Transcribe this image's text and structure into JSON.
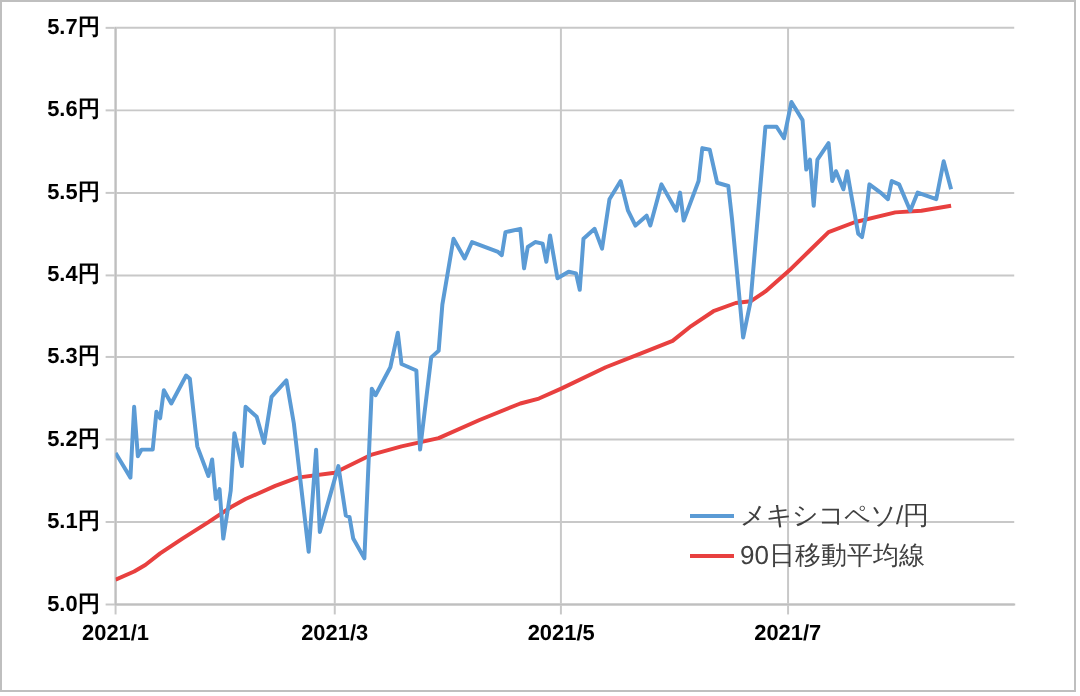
{
  "chart_data": {
    "type": "line",
    "xlim": [
      "2021-01-01",
      "2021-08-31"
    ],
    "xticks": [
      {
        "value": "2021-01",
        "label": "2021/1"
      },
      {
        "value": "2021-03",
        "label": "2021/3"
      },
      {
        "value": "2021-05",
        "label": "2021/5"
      },
      {
        "value": "2021-07",
        "label": "2021/7"
      }
    ],
    "ylim": [
      5.0,
      5.7
    ],
    "yticks": [
      {
        "value": 5.0,
        "label": "5.0円"
      },
      {
        "value": 5.1,
        "label": "5.1円"
      },
      {
        "value": 5.2,
        "label": "5.2円"
      },
      {
        "value": 5.3,
        "label": "5.3円"
      },
      {
        "value": 5.4,
        "label": "5.4円"
      },
      {
        "value": 5.5,
        "label": "5.5円"
      },
      {
        "value": 5.6,
        "label": "5.6円"
      },
      {
        "value": 5.7,
        "label": "5.7円"
      }
    ],
    "grid": true,
    "legend": "bottom right",
    "marker": "none",
    "line_style": "solid",
    "series": [
      {
        "name": "メキシコペソ/円",
        "color": "#5b9bd5",
        "x": [
          "2021-01-01",
          "2021-01-05",
          "2021-01-06",
          "2021-01-07",
          "2021-01-08",
          "2021-01-11",
          "2021-01-12",
          "2021-01-13",
          "2021-01-14",
          "2021-01-16",
          "2021-01-20",
          "2021-01-21",
          "2021-01-23",
          "2021-01-26",
          "2021-01-27",
          "2021-01-28",
          "2021-01-29",
          "2021-01-30",
          "2021-02-01",
          "2021-02-02",
          "2021-02-04",
          "2021-02-05",
          "2021-02-08",
          "2021-02-10",
          "2021-02-12",
          "2021-02-16",
          "2021-02-18",
          "2021-02-22",
          "2021-02-24",
          "2021-02-25",
          "2021-03-02",
          "2021-03-04",
          "2021-03-05",
          "2021-03-06",
          "2021-03-09",
          "2021-03-11",
          "2021-03-12",
          "2021-03-16",
          "2021-03-18",
          "2021-03-19",
          "2021-03-23",
          "2021-03-24",
          "2021-03-27",
          "2021-03-29",
          "2021-03-30",
          "2021-04-02",
          "2021-04-05",
          "2021-04-07",
          "2021-04-14",
          "2021-04-15",
          "2021-04-16",
          "2021-04-20",
          "2021-04-21",
          "2021-04-22",
          "2021-04-24",
          "2021-04-26",
          "2021-04-27",
          "2021-04-28",
          "2021-04-30",
          "2021-05-03",
          "2021-05-05",
          "2021-05-06",
          "2021-05-07",
          "2021-05-10",
          "2021-05-12",
          "2021-05-14",
          "2021-05-17",
          "2021-05-19",
          "2021-05-21",
          "2021-05-24",
          "2021-05-25",
          "2021-05-28",
          "2021-06-01",
          "2021-06-02",
          "2021-06-03",
          "2021-06-07",
          "2021-06-08",
          "2021-06-10",
          "2021-06-12",
          "2021-06-15",
          "2021-06-16",
          "2021-06-19",
          "2021-06-21",
          "2021-06-25",
          "2021-06-28",
          "2021-06-30",
          "2021-07-02",
          "2021-07-05",
          "2021-07-06",
          "2021-07-07",
          "2021-07-08",
          "2021-07-09",
          "2021-07-12",
          "2021-07-13",
          "2021-07-14",
          "2021-07-16",
          "2021-07-17",
          "2021-07-18",
          "2021-07-20",
          "2021-07-21",
          "2021-07-22",
          "2021-07-23",
          "2021-07-26",
          "2021-07-28",
          "2021-07-29",
          "2021-07-31",
          "2021-08-03",
          "2021-08-05",
          "2021-08-10",
          "2021-08-12",
          "2021-08-14"
        ],
        "values": [
          5.184,
          5.154,
          5.24,
          5.18,
          5.188,
          5.188,
          5.234,
          5.226,
          5.26,
          5.244,
          5.278,
          5.274,
          5.192,
          5.156,
          5.176,
          5.128,
          5.14,
          5.08,
          5.138,
          5.208,
          5.168,
          5.24,
          5.228,
          5.196,
          5.252,
          5.272,
          5.22,
          5.064,
          5.188,
          5.088,
          5.168,
          5.108,
          5.106,
          5.08,
          5.056,
          5.262,
          5.254,
          5.288,
          5.33,
          5.292,
          5.284,
          5.188,
          5.3,
          5.308,
          5.364,
          5.444,
          5.42,
          5.44,
          5.428,
          5.424,
          5.452,
          5.456,
          5.408,
          5.434,
          5.44,
          5.438,
          5.416,
          5.448,
          5.396,
          5.404,
          5.402,
          5.382,
          5.444,
          5.456,
          5.432,
          5.492,
          5.514,
          5.478,
          5.46,
          5.472,
          5.46,
          5.51,
          5.478,
          5.5,
          5.466,
          5.514,
          5.554,
          5.552,
          5.512,
          5.508,
          5.468,
          5.324,
          5.368,
          5.58,
          5.58,
          5.566,
          5.61,
          5.588,
          5.528,
          5.54,
          5.484,
          5.54,
          5.56,
          5.514,
          5.526,
          5.504,
          5.526,
          5.5,
          5.45,
          5.446,
          5.47,
          5.51,
          5.5,
          5.492,
          5.514,
          5.51,
          5.478,
          5.5,
          5.492,
          5.538,
          5.504
        ]
      },
      {
        "name": "90日移動平均線",
        "color": "#e8403f",
        "x": [
          "2021-01-01",
          "2021-01-06",
          "2021-01-09",
          "2021-01-13",
          "2021-01-19",
          "2021-01-26",
          "2021-02-01",
          "2021-02-05",
          "2021-02-13",
          "2021-02-19",
          "2021-03-01",
          "2021-03-11",
          "2021-03-19",
          "2021-03-29",
          "2021-04-09",
          "2021-04-20",
          "2021-04-25",
          "2021-05-01",
          "2021-05-13",
          "2021-05-22",
          "2021-05-31",
          "2021-06-05",
          "2021-06-11",
          "2021-06-17",
          "2021-06-21",
          "2021-06-25",
          "2021-07-02",
          "2021-07-07",
          "2021-07-12",
          "2021-07-19",
          "2021-07-30",
          "2021-08-06",
          "2021-08-14"
        ],
        "values": [
          5.03,
          5.04,
          5.048,
          5.062,
          5.08,
          5.1,
          5.118,
          5.128,
          5.144,
          5.154,
          5.16,
          5.182,
          5.192,
          5.202,
          5.224,
          5.244,
          5.25,
          5.262,
          5.288,
          5.304,
          5.32,
          5.338,
          5.356,
          5.366,
          5.368,
          5.38,
          5.408,
          5.43,
          5.452,
          5.464,
          5.476,
          5.478,
          5.484
        ]
      }
    ]
  }
}
